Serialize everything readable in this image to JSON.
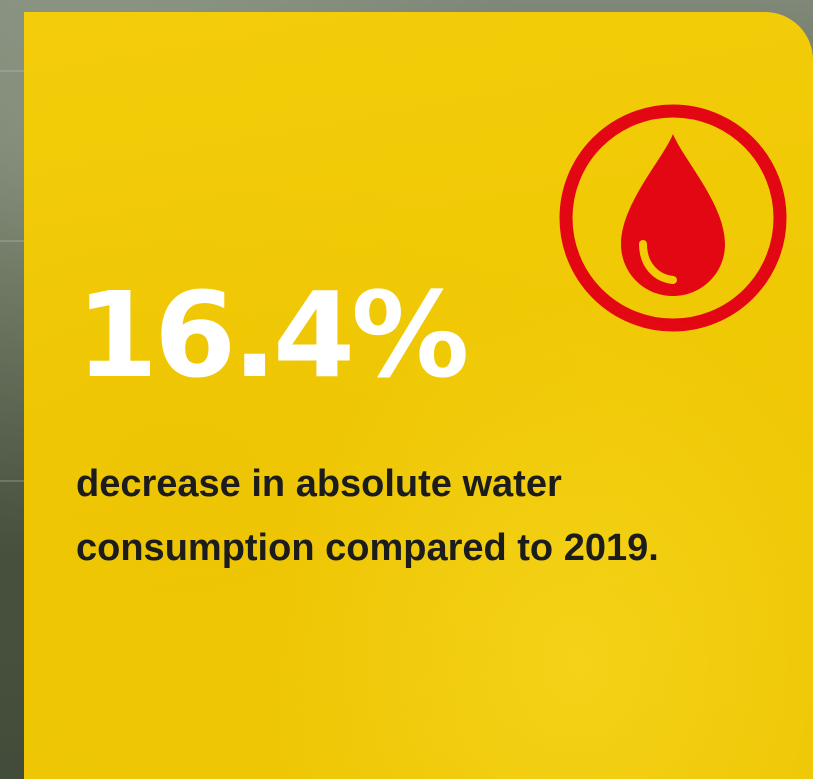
{
  "stat": {
    "value": "16.4%",
    "description": "decrease in absolute water consumption compared to 2019."
  },
  "icon": {
    "name": "water-drop-icon",
    "color": "#e30613"
  },
  "colors": {
    "card_background": "#f2ca06",
    "value_text": "#ffffff",
    "description_text": "#1c1c1c"
  }
}
